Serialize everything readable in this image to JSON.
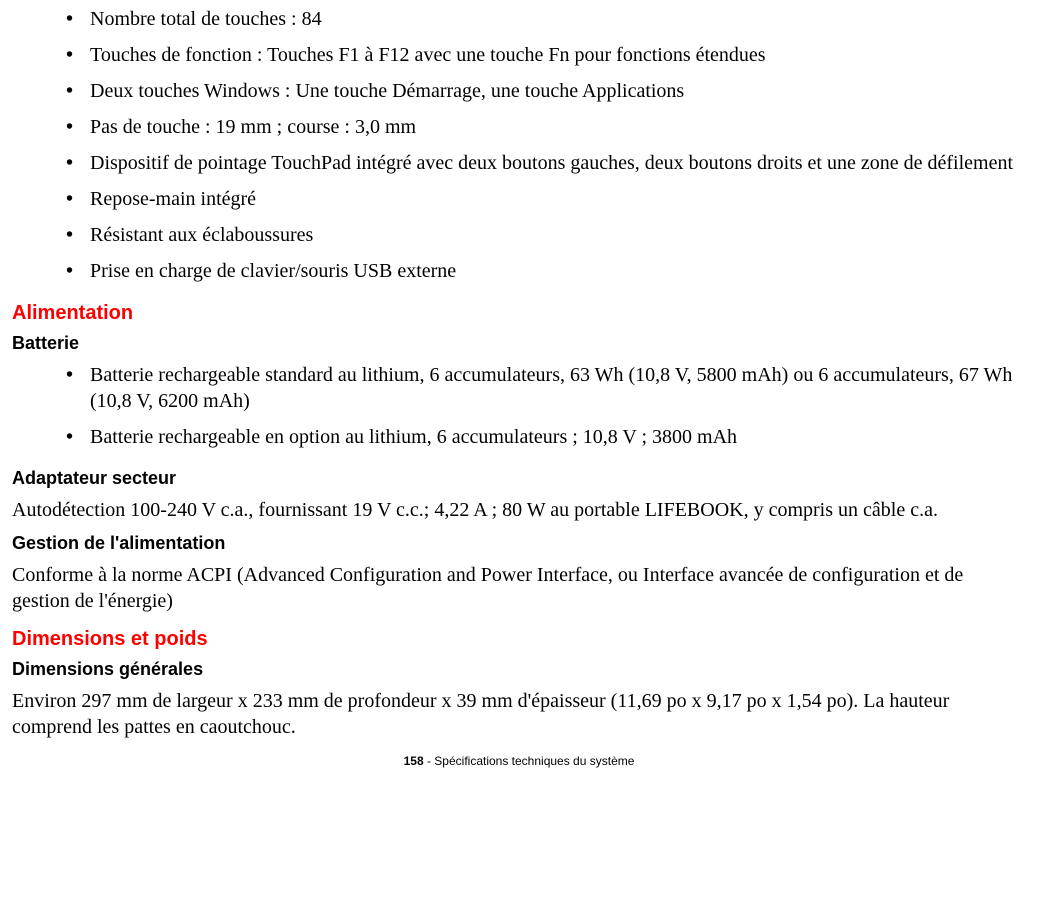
{
  "keyboard_list": {
    "items": [
      "Nombre total de touches : 84",
      "Touches de fonction : Touches F1 à F12 avec une touche Fn pour fonctions étendues",
      "Deux touches Windows : Une touche Démarrage, une touche Applications",
      "Pas de touche : 19 mm ; course : 3,0 mm",
      "Dispositif de pointage TouchPad intégré avec deux boutons gauches, deux boutons droits et une zone de défilement",
      "Repose-main intégré",
      "Résistant aux éclaboussures",
      "Prise en charge de clavier/souris USB externe"
    ]
  },
  "power": {
    "heading": "Alimentation",
    "battery": {
      "subheading": "Batterie",
      "items": [
        "Batterie rechargeable standard au lithium, 6 accumulateurs, 63 Wh (10,8 V, 5800 mAh) ou 6 accumulateurs, 67 Wh (10,8 V, 6200 mAh)",
        "Batterie rechargeable en option au lithium, 6 accumulateurs ; 10,8 V ; 3800 mAh"
      ]
    },
    "adapter": {
      "subheading": "Adaptateur secteur",
      "text": "Autodétection 100-240 V c.a., fournissant 19 V c.c.; 4,22 A ; 80 W au portable LIFEBOOK, y compris un câble c.a."
    },
    "management": {
      "subheading": "Gestion de l'alimentation",
      "text": "Conforme à la norme ACPI (Advanced Configuration and Power Interface, ou Interface avancée de configuration et de gestion de l'énergie)"
    }
  },
  "dimensions": {
    "heading": "Dimensions et poids",
    "general": {
      "subheading": "Dimensions générales",
      "text": "Environ 297 mm de largeur x 233 mm de profondeur x 39 mm d'épaisseur (11,69 po x 9,17 po x 1,54 po). La hauteur comprend les pattes en caoutchouc."
    }
  },
  "footer": {
    "page": "158",
    "separator": " - ",
    "label": "Spécifications techniques du système"
  }
}
